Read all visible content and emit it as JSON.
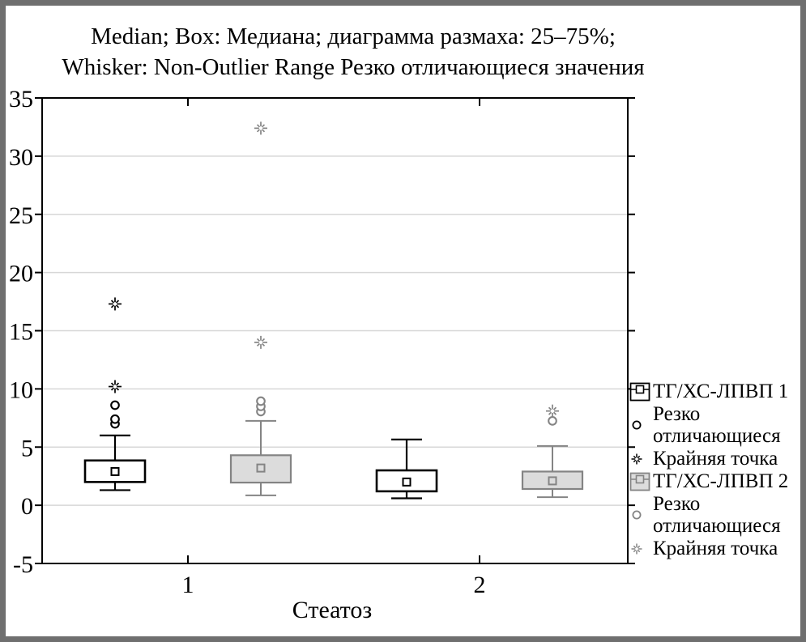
{
  "window": {
    "frame_color": "#6f6f6f",
    "background": "#ffffff"
  },
  "title": {
    "line1": "Median; Box: Медиана; диаграмма размаха: 25–75%;",
    "line2": "Whisker: Non-Outlier Range Резко отличающиеся значения"
  },
  "chart_data": {
    "type": "boxplot",
    "xlabel": "Стеатоз",
    "categories": [
      "1",
      "2"
    ],
    "y_ticks": [
      35,
      30,
      25,
      20,
      15,
      10,
      5,
      0,
      -5
    ],
    "ylim": [
      -5,
      35
    ],
    "grid_values": [
      30,
      25,
      20,
      15,
      10,
      5,
      0
    ],
    "grid_on": true,
    "legend_position": "right",
    "colors": {
      "series1_stroke": "#000000",
      "series1_fill": "#ffffff",
      "series2_stroke": "#848484",
      "series2_fill": "#dcdcdc",
      "gridline": "#d7d7d7"
    },
    "series": [
      {
        "name": "ТГ/ХС-ЛПВП 1",
        "key": "series1",
        "stroke": "#000000",
        "fill": "#ffffff",
        "groups": [
          {
            "category": "1",
            "median": 2.9,
            "q25": 2.0,
            "q75": 3.85,
            "whisker_low": 1.3,
            "whisker_high": 6.0,
            "outliers": [
              7.0,
              7.4,
              8.6
            ],
            "extremes": [
              10.2,
              17.3
            ]
          },
          {
            "category": "2",
            "median": 2.0,
            "q25": 1.2,
            "q75": 3.0,
            "whisker_low": 0.6,
            "whisker_high": 5.65,
            "outliers": [],
            "extremes": []
          }
        ]
      },
      {
        "name": "ТГ/ХС-ЛПВП 2",
        "key": "series2",
        "stroke": "#848484",
        "fill": "#dcdcdc",
        "groups": [
          {
            "category": "1",
            "median": 3.2,
            "q25": 1.95,
            "q75": 4.3,
            "whisker_low": 0.85,
            "whisker_high": 7.25,
            "outliers": [
              8.05,
              8.5,
              8.95
            ],
            "extremes": [
              14.0,
              32.4
            ]
          },
          {
            "category": "2",
            "median": 2.1,
            "q25": 1.4,
            "q75": 2.9,
            "whisker_low": 0.7,
            "whisker_high": 5.1,
            "outliers": [
              7.25
            ],
            "extremes": [
              8.1
            ]
          }
        ]
      }
    ],
    "legend": [
      {
        "key": "series1-box",
        "type": "box",
        "series": 1,
        "label": "ТГ/ХС-ЛПВП 1"
      },
      {
        "key": "series1-outlier",
        "type": "outlier",
        "series": 1,
        "label": "Резко отличающиеся"
      },
      {
        "key": "series1-extreme",
        "type": "extreme",
        "series": 1,
        "label": "Крайняя точка"
      },
      {
        "key": "series2-box",
        "type": "box",
        "series": 2,
        "label": "ТГ/ХС-ЛПВП 2"
      },
      {
        "key": "series2-outlier",
        "type": "outlier",
        "series": 2,
        "label": "Резко отличающиеся"
      },
      {
        "key": "series2-extreme",
        "type": "extreme",
        "series": 2,
        "label": "Крайняя точка"
      }
    ]
  }
}
